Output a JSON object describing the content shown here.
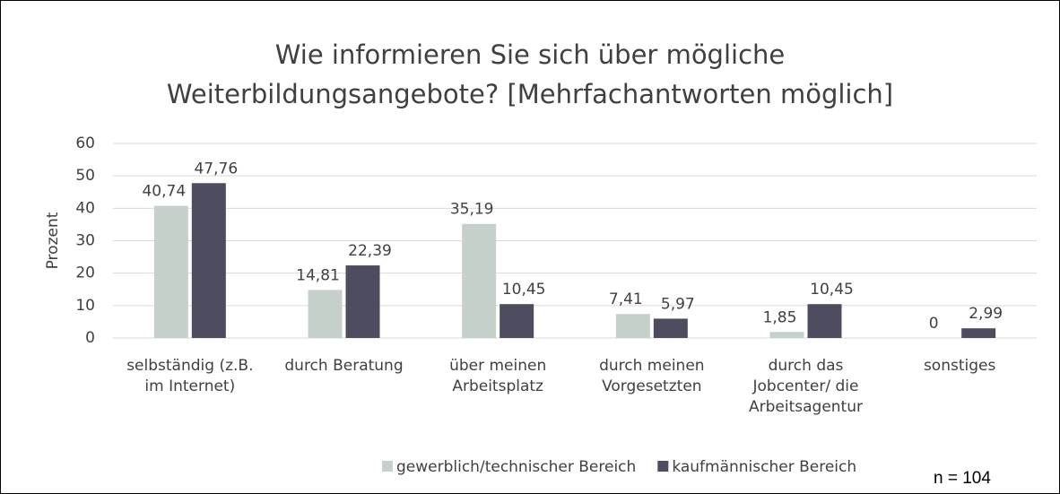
{
  "chart_data": {
    "type": "bar",
    "title": "Wie informieren Sie sich über mögliche Weiterbildungsangebote? [Mehrfachantworten möglich]",
    "y_label": "Prozent",
    "annotation": "n = 104",
    "categories": [
      "selbständig (z.B. im Internet)",
      "durch Beratung",
      "über meinen Arbeitsplatz",
      "durch meinen Vorgesetzten",
      "durch das Jobcenter/ die Arbeitsagentur",
      "sonstiges"
    ],
    "series": [
      {
        "name": "gewerblich/technischer Bereich",
        "color": "#c6d0ca",
        "values": [
          40.74,
          14.81,
          35.19,
          7.41,
          1.85,
          0
        ],
        "value_labels": [
          "40,74",
          "14,81",
          "35,19",
          "7,41",
          "1,85",
          "0"
        ]
      },
      {
        "name": "kaufmännischer Bereich",
        "color": "#4e4d5f",
        "values": [
          47.76,
          22.39,
          10.45,
          5.97,
          10.45,
          2.99
        ],
        "value_labels": [
          "47,76",
          "22,39",
          "10,45",
          "5,97",
          "10,45",
          "2,99"
        ]
      }
    ],
    "ylim": [
      0,
      60
    ],
    "yticks": [
      0,
      10,
      20,
      30,
      40,
      50,
      60
    ],
    "grid": true,
    "legend": "bottom"
  }
}
